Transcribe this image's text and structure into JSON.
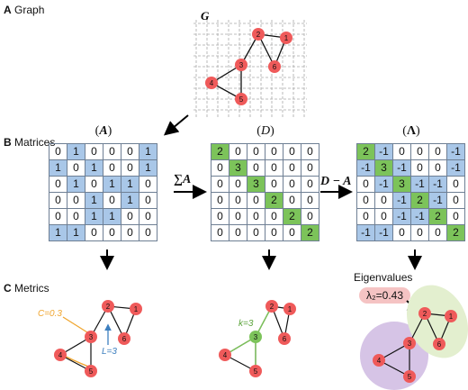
{
  "sections": {
    "a_letter": "A",
    "a_text": "Graph",
    "b_letter": "B",
    "b_text": "Matrices",
    "c_letter": "C",
    "c_text": "Metrics"
  },
  "graph_label": "G",
  "matrices": {
    "A": {
      "title_open": "(",
      "title_sym": "A",
      "title_close": ")",
      "rows": [
        [
          "0",
          "1",
          "0",
          "0",
          "0",
          "1"
        ],
        [
          "1",
          "0",
          "1",
          "0",
          "0",
          "1"
        ],
        [
          "0",
          "1",
          "0",
          "1",
          "1",
          "0"
        ],
        [
          "0",
          "0",
          "1",
          "0",
          "1",
          "0"
        ],
        [
          "0",
          "0",
          "1",
          "1",
          "0",
          "0"
        ],
        [
          "1",
          "1",
          "0",
          "0",
          "0",
          "0"
        ]
      ]
    },
    "D": {
      "title_open": "(",
      "title_sym": "D",
      "title_close": ")",
      "rows": [
        [
          "2",
          "0",
          "0",
          "0",
          "0",
          "0"
        ],
        [
          "0",
          "3",
          "0",
          "0",
          "0",
          "0"
        ],
        [
          "0",
          "0",
          "3",
          "0",
          "0",
          "0"
        ],
        [
          "0",
          "0",
          "0",
          "2",
          "0",
          "0"
        ],
        [
          "0",
          "0",
          "0",
          "0",
          "2",
          "0"
        ],
        [
          "0",
          "0",
          "0",
          "0",
          "0",
          "2"
        ]
      ]
    },
    "L": {
      "title_open": "(",
      "title_sym": "Λ",
      "title_close": ")",
      "rows": [
        [
          "2",
          "-1",
          "0",
          "0",
          "0",
          "-1"
        ],
        [
          "-1",
          "3",
          "-1",
          "0",
          "0",
          "-1"
        ],
        [
          "0",
          "-1",
          "3",
          "-1",
          "-1",
          "0"
        ],
        [
          "0",
          "0",
          "-1",
          "2",
          "-1",
          "0"
        ],
        [
          "0",
          "0",
          "-1",
          "-1",
          "2",
          "0"
        ],
        [
          "-1",
          "-1",
          "0",
          "0",
          "0",
          "2"
        ]
      ]
    }
  },
  "operators": {
    "sum": "∑A",
    "diff": "D − A"
  },
  "eigen": {
    "label": "Eigenvalues",
    "value": "λ₂=0.43"
  },
  "metrics": {
    "c_label": "C=0.3",
    "l_label": "L=3",
    "k_label": "k=3"
  },
  "nodes": [
    "1",
    "2",
    "3",
    "4",
    "5",
    "6"
  ],
  "colors": {
    "node": "#ef5a5a",
    "node_highlight": "#7cc35a",
    "blue_cell": "#a9c7e8",
    "green_cell": "#7cc35a",
    "purple_blob": "#d6c4e6",
    "green_blob": "#e3efcf",
    "c_color": "#f0a630",
    "l_color": "#3d7fbf"
  }
}
